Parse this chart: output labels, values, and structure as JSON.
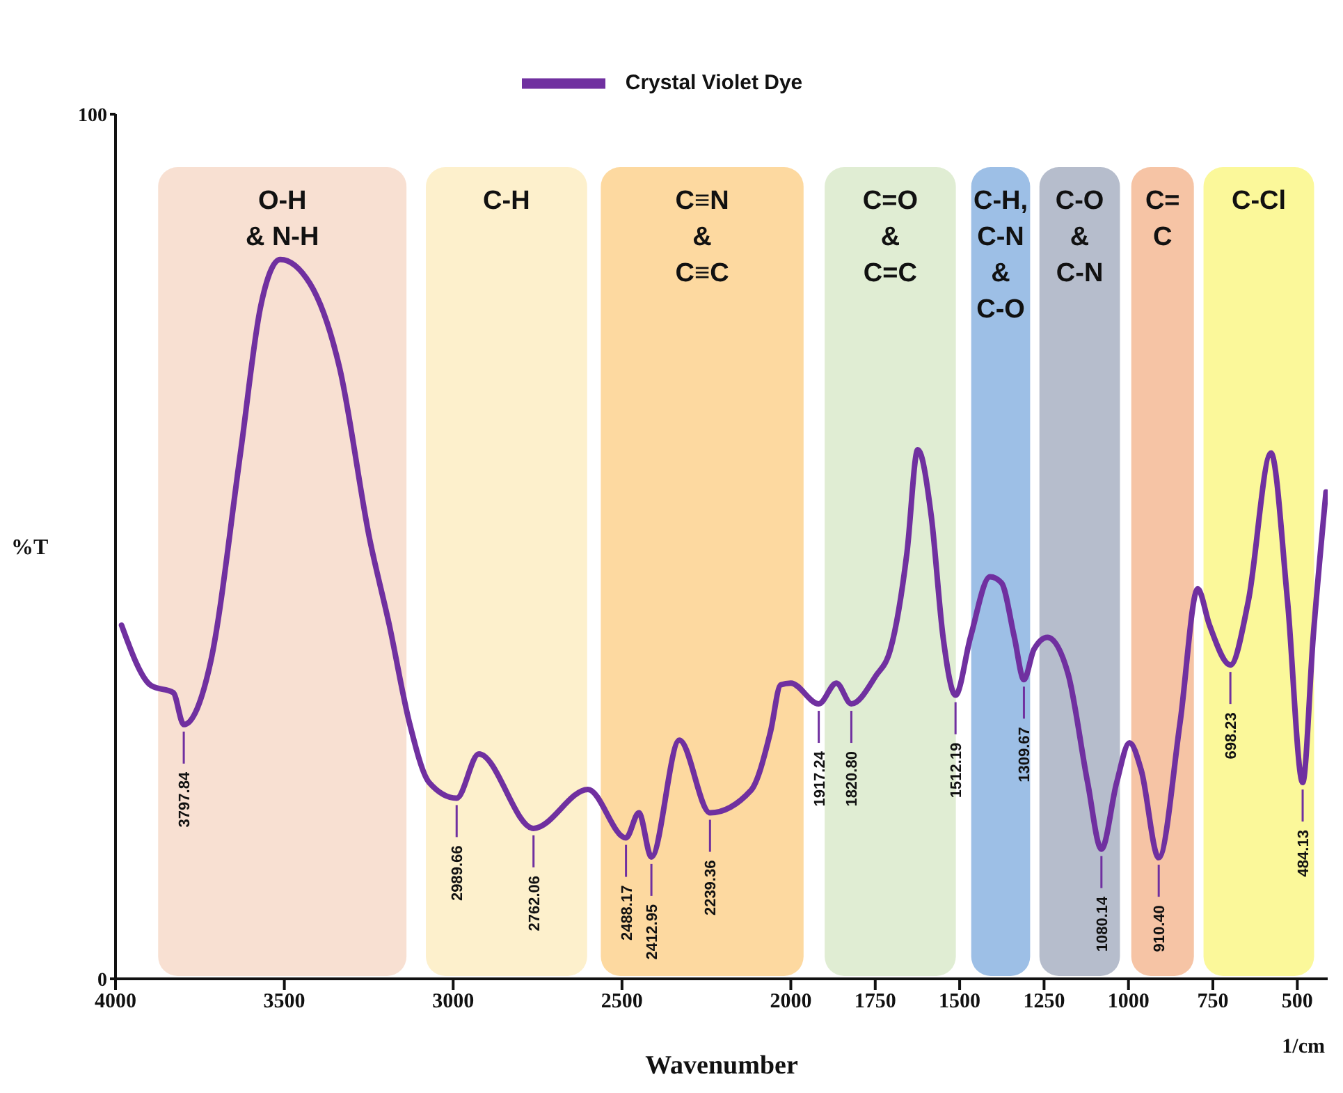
{
  "chart_data": {
    "type": "line",
    "xlabel": "Wavenumber",
    "ylabel": "%T",
    "x": [
      3982,
      3894,
      3829,
      3797.84,
      3718,
      3630,
      3571,
      3512,
      3424,
      3336,
      3247,
      3189,
      3130,
      3071,
      2989.66,
      2924,
      2762.06,
      2601,
      2488.17,
      2450,
      2412.95,
      2330,
      2239.36,
      2118,
      2060,
      2030,
      2000,
      1917.24,
      1865,
      1820.8,
      1749,
      1705,
      1656,
      1624,
      1584,
      1549,
      1512.19,
      1468,
      1410,
      1376,
      1338,
      1309.67,
      1280,
      1240,
      1179,
      1121,
      1080.14,
      1035,
      997,
      962,
      910.4,
      847,
      795,
      760,
      698.23,
      645,
      578,
      529,
      484.13,
      453,
      415
    ],
    "series": [
      {
        "name": "Crystal Violet Dye",
        "color": "#7030a0",
        "values": [
          40.9,
          33.9,
          33.1,
          29.4,
          36.7,
          60.8,
          77.6,
          83.2,
          80.4,
          70.6,
          50.8,
          40.9,
          29.7,
          22.7,
          20.9,
          26.0,
          17.4,
          21.9,
          16.3,
          19.2,
          14.1,
          27.6,
          19.2,
          21.8,
          28.6,
          34.0,
          34.2,
          31.8,
          34.2,
          31.8,
          35.0,
          38.1,
          49.3,
          61.2,
          53.5,
          39.5,
          32.8,
          39.5,
          46.5,
          45.8,
          39.5,
          34.6,
          38.1,
          39.5,
          35.3,
          22.7,
          15.0,
          22.7,
          27.3,
          24.1,
          14.0,
          29.7,
          45.1,
          40.9,
          36.3,
          43.7,
          60.8,
          43.7,
          22.7,
          39.5,
          56.3
        ]
      }
    ],
    "xlim": [
      4000,
      410
    ],
    "xticks": [
      4000,
      3500,
      3000,
      2500,
      2000,
      1750,
      1500,
      1250,
      1000,
      750,
      500
    ],
    "ylim": [
      0,
      100
    ],
    "yticks": [
      0,
      100
    ],
    "grid": false,
    "legend": "top",
    "marker": "none",
    "line_style": "solid",
    "bands": [
      {
        "axis": "x",
        "from": 3882,
        "to": 3130,
        "label": "O-H\n& N-H",
        "color": "#f8e0d2"
      },
      {
        "axis": "x",
        "from": 3089,
        "to": 2595,
        "label": "C-H",
        "color": "#fdf0cc"
      },
      {
        "axis": "x",
        "from": 2571,
        "to": 1954,
        "label": "C≡N\n&\nC≡C",
        "color": "#fdd9a0"
      },
      {
        "axis": "x",
        "from": 1908,
        "to": 1503,
        "label": "C=O\n&\nC=C",
        "color": "#e0edd3"
      },
      {
        "axis": "x",
        "from": 1474,
        "to": 1283,
        "label": "C-H,\nC-N\n&\nC-O",
        "color": "#9dbfe6"
      },
      {
        "axis": "x",
        "from": 1272,
        "to": 1017,
        "label": "C-O\n&\nC-N",
        "color": "#b6bdcc"
      },
      {
        "axis": "x",
        "from": 1000,
        "to": 798,
        "label": "C=\nC",
        "color": "#f6c4a5"
      },
      {
        "axis": "x",
        "from": 786,
        "to": 442,
        "label": "C-Cl",
        "color": "#fbf89a"
      }
    ],
    "annotations": [
      {
        "text": "3797.84",
        "x": 3797.84,
        "y": 29.4
      },
      {
        "text": "2989.66",
        "x": 2989.66,
        "y": 20.9
      },
      {
        "text": "2762.06",
        "x": 2762.06,
        "y": 17.4
      },
      {
        "text": "2488.17",
        "x": 2488.17,
        "y": 16.3
      },
      {
        "text": "2412.95",
        "x": 2412.95,
        "y": 14.1
      },
      {
        "text": "2239.36",
        "x": 2239.36,
        "y": 19.2
      },
      {
        "text": "1917.24",
        "x": 1917.24,
        "y": 31.8
      },
      {
        "text": "1820.80",
        "x": 1820.8,
        "y": 31.8
      },
      {
        "text": "1512.19",
        "x": 1512.19,
        "y": 32.8
      },
      {
        "text": "1309.67",
        "x": 1309.67,
        "y": 34.6
      },
      {
        "text": "1080.14",
        "x": 1080.14,
        "y": 15.0
      },
      {
        "text": "910.40",
        "x": 910.4,
        "y": 14.0
      },
      {
        "text": "698.23",
        "x": 698.23,
        "y": 36.3
      },
      {
        "text": "484.13",
        "x": 484.13,
        "y": 22.7
      },
      "1/cm"
    ]
  }
}
